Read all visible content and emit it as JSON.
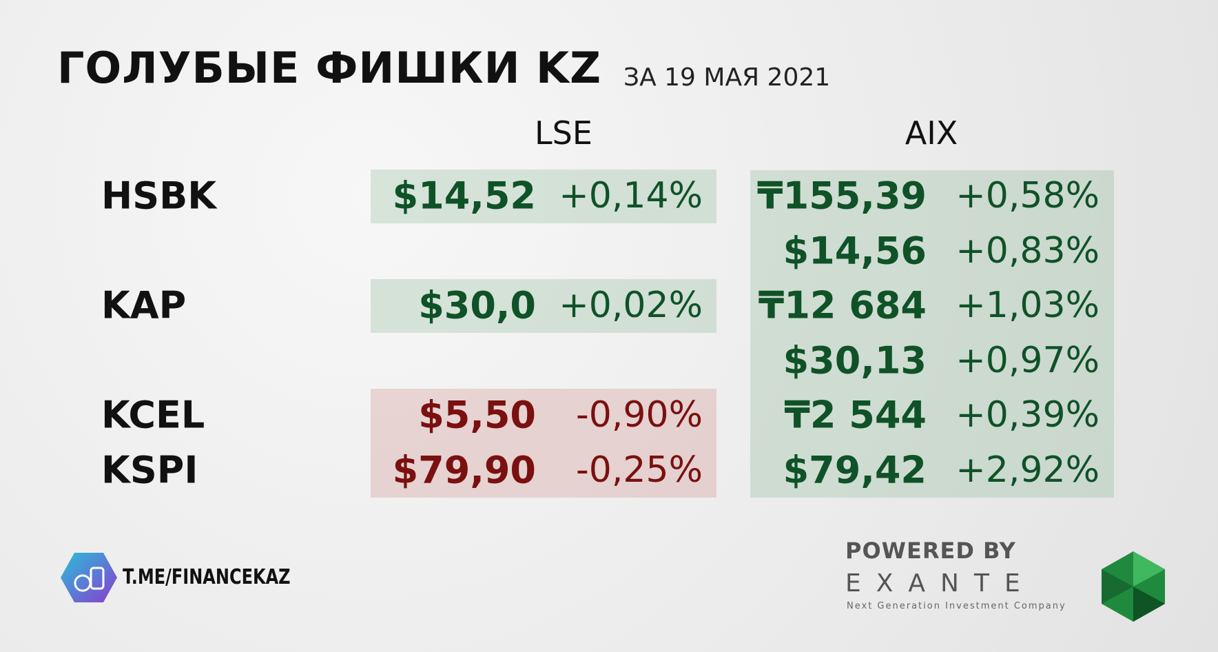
{
  "header": {
    "title": "ГОЛУБЫЕ ФИШКИ KZ",
    "date": "ЗА 19 МАЯ 2021"
  },
  "columns": [
    "LSE",
    "AIX"
  ],
  "rows": [
    {
      "ticker": "HSBK",
      "lse": {
        "price": "$14,52",
        "change": "+0,14%"
      },
      "aix": {
        "price": "₸155,39",
        "change": "+0,58%"
      }
    },
    {
      "aix": {
        "price": "$14,56",
        "change": "+0,83%"
      }
    },
    {
      "ticker": "KAP",
      "lse": {
        "price": "$30,0",
        "change": "+0,02%"
      },
      "aix": {
        "price": "₸12 684",
        "change": "+1,03%"
      }
    },
    {
      "aix": {
        "price": "$30,13",
        "change": "+0,97%"
      }
    },
    {
      "ticker": "KCEL",
      "lse": {
        "price": "$5,50",
        "change": "-0,90%"
      },
      "aix": {
        "price": "₸2 544",
        "change": "+0,39%"
      }
    },
    {
      "ticker": "KSPI",
      "lse": {
        "price": "$79,90",
        "change": "-0,25%"
      },
      "aix": {
        "price": "$79,42",
        "change": "+2,92%"
      }
    }
  ],
  "footer": {
    "channel": "T.ME/FINANCEKAZ",
    "powered": "POWERED BY",
    "brand": "EXANTE",
    "tagline": "Next Generation Investment Company"
  }
}
